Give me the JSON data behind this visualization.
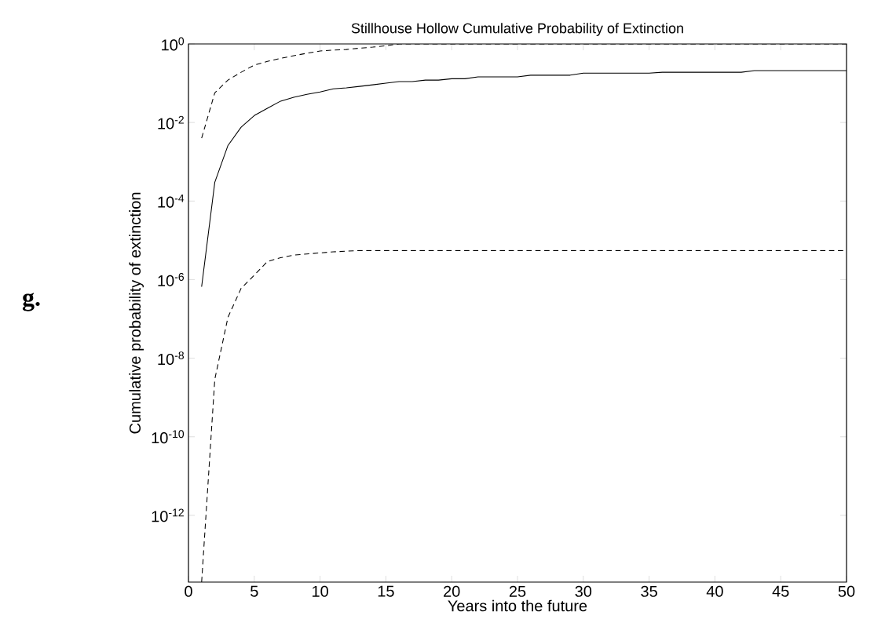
{
  "chart_data": {
    "type": "line",
    "title": "Stillhouse Hollow Cumulative Probability of Extinction",
    "xlabel": "Years into the future",
    "ylabel": "Cumulative probability of extinction",
    "annotations": [
      "g."
    ],
    "log": "y",
    "xlim": [
      0,
      50
    ],
    "ylim": [
      2e-14,
      1
    ],
    "xticks": [
      0,
      5,
      10,
      15,
      20,
      25,
      30,
      35,
      40,
      45,
      50
    ],
    "yticks": [
      {
        "value": 1e-12,
        "label": "10$^{-12}$"
      },
      {
        "value": 1e-10,
        "label": "10$^{-10}$"
      },
      {
        "value": 1e-08,
        "label": "10$^{-8}$"
      },
      {
        "value": 1e-06,
        "label": "10$^{-6}$"
      },
      {
        "value": 0.0001,
        "label": "10$^{-4}$"
      },
      {
        "value": 0.01,
        "label": "10$^{-2}$"
      },
      {
        "value": 1,
        "label": "10$^{0}$"
      }
    ],
    "marker": "none",
    "x": [
      1,
      2,
      3,
      4,
      5,
      6,
      7,
      8,
      9,
      10,
      11,
      12,
      13,
      14,
      15,
      16,
      17,
      18,
      19,
      20,
      21,
      22,
      23,
      24,
      25,
      26,
      27,
      28,
      29,
      30,
      31,
      32,
      33,
      34,
      35,
      36,
      37,
      38,
      39,
      40,
      41,
      42,
      43,
      44,
      45,
      46,
      47,
      48,
      49,
      50
    ],
    "series": [
      {
        "color": "#000000",
        "line_style": "dashed",
        "values": [
          0.004,
          0.057,
          0.12,
          0.19,
          0.29,
          0.36,
          0.43,
          0.5,
          0.58,
          0.66,
          0.7,
          0.72,
          0.78,
          0.83,
          0.9,
          1,
          1,
          1,
          1,
          1,
          1,
          1,
          1,
          1,
          1,
          1,
          1,
          1,
          1,
          1,
          1,
          1,
          1,
          1,
          1,
          1,
          1,
          1,
          1,
          1,
          1,
          1,
          1,
          1,
          1,
          1,
          1,
          1,
          1,
          1
        ]
      },
      {
        "color": "#000000",
        "line_style": "solid",
        "values": [
          6.6e-07,
          0.0003,
          0.0026,
          0.0076,
          0.015,
          0.023,
          0.035,
          0.044,
          0.052,
          0.06,
          0.072,
          0.076,
          0.083,
          0.091,
          0.1,
          0.11,
          0.11,
          0.12,
          0.12,
          0.13,
          0.13,
          0.145,
          0.145,
          0.145,
          0.145,
          0.16,
          0.16,
          0.16,
          0.16,
          0.18,
          0.18,
          0.18,
          0.18,
          0.18,
          0.18,
          0.19,
          0.19,
          0.19,
          0.19,
          0.19,
          0.19,
          0.19,
          0.21,
          0.21,
          0.21,
          0.21,
          0.21,
          0.21,
          0.21,
          0.21
        ]
      },
      {
        "color": "#000000",
        "line_style": "dashed",
        "values": [
          2e-14,
          2.9e-09,
          1.1e-07,
          6e-07,
          1.3e-06,
          2.9e-06,
          3.6e-06,
          4.2e-06,
          4.5e-06,
          4.8e-06,
          5.1e-06,
          5.3e-06,
          5.5e-06,
          5.5e-06,
          5.5e-06,
          5.5e-06,
          5.5e-06,
          5.5e-06,
          5.5e-06,
          5.5e-06,
          5.5e-06,
          5.5e-06,
          5.5e-06,
          5.5e-06,
          5.5e-06,
          5.5e-06,
          5.5e-06,
          5.5e-06,
          5.5e-06,
          5.5e-06,
          5.5e-06,
          5.5e-06,
          5.5e-06,
          5.5e-06,
          5.5e-06,
          5.5e-06,
          5.5e-06,
          5.5e-06,
          5.5e-06,
          5.5e-06,
          5.5e-06,
          5.5e-06,
          5.5e-06,
          5.5e-06,
          5.5e-06,
          5.5e-06,
          5.5e-06,
          5.5e-06,
          5.5e-06,
          5.5e-06
        ]
      }
    ]
  }
}
